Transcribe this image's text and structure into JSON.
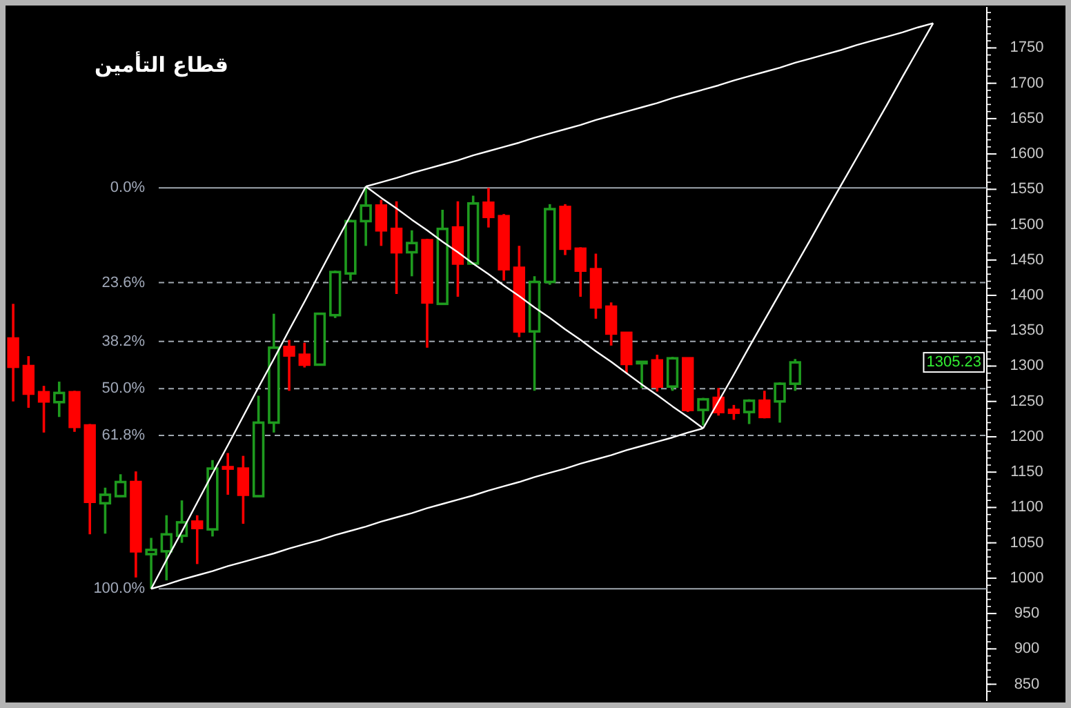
{
  "chart_data": {
    "type": "candlestick",
    "title": "قطاع التأمين",
    "categories": [
      null,
      null,
      null,
      null,
      null,
      null,
      null,
      null,
      null,
      null,
      null,
      null,
      null,
      null,
      null,
      null,
      null,
      null,
      null,
      null,
      null,
      null,
      null,
      null,
      null,
      null,
      null,
      null,
      null,
      null,
      null,
      null,
      null,
      null,
      null,
      null,
      null,
      null,
      null,
      null,
      null,
      null,
      null,
      null,
      null,
      null,
      null,
      null,
      null,
      null,
      null,
      null,
      null,
      null,
      null,
      null,
      null,
      null,
      null,
      null,
      null,
      null,
      null,
      null
    ],
    "ohlc": [
      [
        1339,
        1388,
        1250,
        1299
      ],
      [
        1300,
        1314,
        1241,
        1261
      ],
      [
        1263,
        1272,
        1206,
        1250
      ],
      [
        1249,
        1278,
        1228,
        1262
      ],
      [
        1263,
        1265,
        1207,
        1214
      ],
      [
        1216,
        1218,
        1062,
        1108
      ],
      [
        1106,
        1128,
        1063,
        1118
      ],
      [
        1116,
        1147,
        1116,
        1136
      ],
      [
        1136,
        1151,
        1001,
        1038
      ],
      [
        1034,
        1057,
        985,
        1040
      ],
      [
        1038,
        1089,
        997,
        1062
      ],
      [
        1060,
        1110,
        1050,
        1079
      ],
      [
        1080,
        1089,
        1020,
        1071
      ],
      [
        1069,
        1167,
        1059,
        1155
      ],
      [
        1157,
        1177,
        1118,
        1155
      ],
      [
        1155,
        1173,
        1077,
        1118
      ],
      [
        1116,
        1258,
        1116,
        1220
      ],
      [
        1220,
        1374,
        1206,
        1326
      ],
      [
        1327,
        1337,
        1265,
        1315
      ],
      [
        1316,
        1333,
        1298,
        1302
      ],
      [
        1302,
        1375,
        1302,
        1374
      ],
      [
        1372,
        1435,
        1368,
        1433
      ],
      [
        1431,
        1507,
        1421,
        1505
      ],
      [
        1505,
        1554,
        1470,
        1527
      ],
      [
        1527,
        1535,
        1470,
        1492
      ],
      [
        1494,
        1533,
        1402,
        1461
      ],
      [
        1461,
        1492,
        1427,
        1474
      ],
      [
        1478,
        1480,
        1326,
        1390
      ],
      [
        1388,
        1521,
        1388,
        1494
      ],
      [
        1496,
        1533,
        1398,
        1445
      ],
      [
        1445,
        1541,
        1445,
        1530
      ],
      [
        1531,
        1552,
        1496,
        1511
      ],
      [
        1512,
        1515,
        1421,
        1437
      ],
      [
        1439,
        1470,
        1341,
        1349
      ],
      [
        1349,
        1427,
        1265,
        1419
      ],
      [
        1419,
        1529,
        1415,
        1522
      ],
      [
        1525,
        1529,
        1457,
        1466
      ],
      [
        1466,
        1468,
        1398,
        1435
      ],
      [
        1437,
        1459,
        1367,
        1383
      ],
      [
        1384,
        1390,
        1329,
        1346
      ],
      [
        1347,
        1347,
        1290,
        1303
      ],
      [
        1304,
        1307,
        1269,
        1306
      ],
      [
        1308,
        1316,
        1264,
        1271
      ],
      [
        1271,
        1313,
        1265,
        1311
      ],
      [
        1311,
        1311,
        1235,
        1238
      ],
      [
        1238,
        1255,
        1216,
        1253
      ],
      [
        1255,
        1269,
        1230,
        1235
      ],
      [
        1238,
        1245,
        1224,
        1234
      ],
      [
        1235,
        1253,
        1218,
        1251
      ],
      [
        1251,
        1265,
        1226,
        1228
      ],
      [
        1250,
        1277,
        1220,
        1275
      ],
      [
        1275,
        1310,
        1265,
        1305.23
      ],
      null,
      null,
      null,
      null,
      null,
      null,
      null,
      null,
      null,
      null,
      null,
      null
    ],
    "colors": [
      "#ff0000",
      "#ff0000",
      "#ff0000",
      "#1e9a1e",
      "#ff0000",
      "#ff0000",
      "#1e9a1e",
      "#1e9a1e",
      "#ff0000",
      "#1e9a1e",
      "#1e9a1e",
      "#1e9a1e",
      "#ff0000",
      "#1e9a1e",
      "#ff0000",
      "#ff0000",
      "#1e9a1e",
      "#1e9a1e",
      "#ff0000",
      "#ff0000",
      "#1e9a1e",
      "#1e9a1e",
      "#1e9a1e",
      "#1e9a1e",
      "#ff0000",
      "#ff0000",
      "#1e9a1e",
      "#ff0000",
      "#1e9a1e",
      "#ff0000",
      "#1e9a1e",
      "#ff0000",
      "#ff0000",
      "#ff0000",
      "#1e9a1e",
      "#1e9a1e",
      "#ff0000",
      "#ff0000",
      "#ff0000",
      "#ff0000",
      "#ff0000",
      "#1e9a1e",
      "#ff0000",
      "#1e9a1e",
      "#ff0000",
      "#1e9a1e",
      "#ff0000",
      "#ff0000",
      "#1e9a1e",
      "#ff0000",
      "#1e9a1e",
      "#1e9a1e",
      null,
      null,
      null,
      null,
      null,
      null,
      null,
      null,
      null,
      null,
      null,
      null
    ],
    "series": [
      {
        "type": "line",
        "color": "#ffffff",
        "values": [
          null,
          null,
          null,
          null,
          null,
          null,
          null,
          null,
          null,
          985,
          1026,
          1066,
          1107,
          1148,
          1188,
          1229,
          1270,
          1310,
          1351,
          1391,
          1432,
          1473,
          1513,
          1554,
          null,
          null,
          null,
          null,
          null,
          null,
          null,
          null,
          null,
          null,
          null,
          null,
          null,
          null,
          null,
          null,
          null,
          null,
          null,
          null,
          null,
          null,
          null,
          null,
          null,
          null,
          null,
          null,
          null,
          null,
          null,
          null,
          null,
          null,
          null,
          null,
          null,
          null,
          null,
          null
        ]
      },
      {
        "type": "line",
        "color": "#ffffff",
        "values": [
          null,
          null,
          null,
          null,
          null,
          null,
          null,
          null,
          null,
          null,
          null,
          null,
          null,
          null,
          null,
          null,
          null,
          null,
          null,
          null,
          null,
          null,
          null,
          1554,
          1560,
          1566,
          1573,
          1579,
          1585,
          1591,
          1598,
          1604,
          1610,
          1616,
          1623,
          1629,
          1635,
          1641,
          1648,
          1654,
          1660,
          1666,
          1672,
          1679,
          1685,
          1691,
          1697,
          1704,
          1710,
          1716,
          1722,
          1729,
          1735,
          1741,
          1747,
          1754,
          1760,
          1766,
          1772,
          1779,
          1785,
          null,
          null,
          null
        ]
      },
      {
        "type": "line",
        "color": "#ffffff",
        "values": [
          null,
          null,
          null,
          null,
          null,
          null,
          null,
          null,
          null,
          985,
          991,
          998,
          1004,
          1010,
          1017,
          1023,
          1029,
          1035,
          1042,
          1048,
          1054,
          1061,
          1067,
          1073,
          1080,
          1086,
          1092,
          1099,
          1105,
          1111,
          1117,
          1124,
          1130,
          1136,
          1143,
          1149,
          1155,
          1162,
          1168,
          1174,
          1181,
          1187,
          1193,
          1199,
          1206,
          1212,
          null,
          null,
          null,
          null,
          null,
          null,
          null,
          null,
          null,
          null,
          null,
          null,
          null,
          null,
          null,
          null,
          null,
          null
        ]
      },
      {
        "type": "line",
        "color": "#ffffff",
        "values": [
          null,
          null,
          null,
          null,
          null,
          null,
          null,
          null,
          null,
          null,
          null,
          null,
          null,
          null,
          null,
          null,
          null,
          null,
          null,
          null,
          null,
          null,
          null,
          null,
          null,
          null,
          null,
          null,
          null,
          null,
          null,
          null,
          null,
          null,
          null,
          null,
          null,
          null,
          null,
          null,
          null,
          null,
          null,
          null,
          null,
          1212,
          1250,
          1288,
          1327,
          1365,
          1403,
          1441,
          1479,
          1518,
          1556,
          1594,
          1632,
          1670,
          1709,
          1747,
          1785,
          null,
          null,
          null
        ]
      },
      {
        "type": "line",
        "color": "#ffffff",
        "values": [
          null,
          null,
          null,
          null,
          null,
          null,
          null,
          null,
          null,
          null,
          null,
          null,
          null,
          null,
          null,
          null,
          null,
          null,
          null,
          null,
          null,
          null,
          null,
          1554,
          1538,
          1523,
          1507,
          1492,
          1476,
          1461,
          1445,
          1430,
          1414,
          1399,
          1383,
          1368,
          1352,
          1337,
          1321,
          1306,
          1290,
          1274,
          1259,
          1243,
          1228,
          1212,
          null,
          null,
          null,
          null,
          null,
          null,
          null,
          null,
          null,
          null,
          null,
          null,
          null,
          null,
          null,
          null,
          null,
          null
        ]
      }
    ],
    "ref_lines": [
      {
        "axis": "y",
        "value": 1552,
        "color": "#a0a8b0",
        "line_style": "solid"
      },
      {
        "axis": "y",
        "value": 1418,
        "color": "#a0a8b0",
        "line_style": "dashed"
      },
      {
        "axis": "y",
        "value": 1335,
        "color": "#a0a8b0",
        "line_style": "dashed"
      },
      {
        "axis": "y",
        "value": 1268,
        "color": "#a0a8b0",
        "line_style": "dashed"
      },
      {
        "axis": "y",
        "value": 1202,
        "color": "#a0a8b0",
        "line_style": "dashed"
      },
      {
        "axis": "y",
        "value": 985,
        "color": "#a0a8b0",
        "line_style": "solid"
      }
    ],
    "annotations": [
      "0.0%",
      "23.6%",
      "38.2%",
      "50.0%",
      "61.8%",
      "100.0%",
      "1305.23"
    ],
    "ylim": [
      832,
      1808
    ],
    "yticks": [
      850,
      900,
      950,
      1000,
      1050,
      1100,
      1150,
      1200,
      1250,
      1300,
      1350,
      1400,
      1450,
      1500,
      1550,
      1600,
      1650,
      1700,
      1750
    ]
  }
}
